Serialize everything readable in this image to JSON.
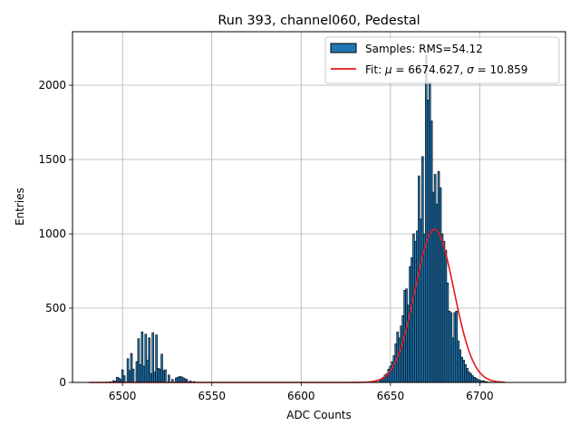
{
  "chart_data": {
    "type": "bar",
    "title": "Run 393, channel060, Pedestal",
    "xlabel": "ADC Counts",
    "ylabel": "Entries",
    "xlim": [
      6472,
      6748
    ],
    "ylim": [
      0,
      2360
    ],
    "xticks": [
      6500,
      6550,
      6600,
      6650,
      6700
    ],
    "yticks": [
      0,
      500,
      1000,
      1500,
      2000
    ],
    "grid": true,
    "legend": {
      "placement": "top-right",
      "samples_label": "Samples: RMS=54.12",
      "fit_label_prefix": "Fit: ",
      "fit_mu_symbol": "μ",
      "fit_mu_value": " = 6674.627, ",
      "fit_sigma_symbol": "σ",
      "fit_sigma_value": " = 10.859"
    },
    "colors": {
      "bars": "#1f77b4",
      "bar_edge": "#000000",
      "fit": "#e31a1c",
      "grid": "#b0b0b0"
    },
    "bin_width": 1,
    "bars": [
      {
        "x": 6488,
        "y": 2
      },
      {
        "x": 6491,
        "y": 3
      },
      {
        "x": 6493,
        "y": 5
      },
      {
        "x": 6495,
        "y": 12
      },
      {
        "x": 6496,
        "y": 8
      },
      {
        "x": 6497,
        "y": 35
      },
      {
        "x": 6498,
        "y": 30
      },
      {
        "x": 6499,
        "y": 20
      },
      {
        "x": 6500,
        "y": 85
      },
      {
        "x": 6501,
        "y": 45
      },
      {
        "x": 6503,
        "y": 160
      },
      {
        "x": 6504,
        "y": 80
      },
      {
        "x": 6505,
        "y": 195
      },
      {
        "x": 6506,
        "y": 90
      },
      {
        "x": 6508,
        "y": 140
      },
      {
        "x": 6509,
        "y": 295
      },
      {
        "x": 6510,
        "y": 120
      },
      {
        "x": 6511,
        "y": 340
      },
      {
        "x": 6512,
        "y": 110
      },
      {
        "x": 6513,
        "y": 325
      },
      {
        "x": 6514,
        "y": 150
      },
      {
        "x": 6515,
        "y": 300
      },
      {
        "x": 6516,
        "y": 60
      },
      {
        "x": 6517,
        "y": 335
      },
      {
        "x": 6518,
        "y": 70
      },
      {
        "x": 6519,
        "y": 320
      },
      {
        "x": 6520,
        "y": 95
      },
      {
        "x": 6521,
        "y": 90
      },
      {
        "x": 6522,
        "y": 190
      },
      {
        "x": 6523,
        "y": 80
      },
      {
        "x": 6524,
        "y": 85
      },
      {
        "x": 6526,
        "y": 50
      },
      {
        "x": 6528,
        "y": 20
      },
      {
        "x": 6530,
        "y": 30
      },
      {
        "x": 6531,
        "y": 35
      },
      {
        "x": 6532,
        "y": 40
      },
      {
        "x": 6533,
        "y": 38
      },
      {
        "x": 6534,
        "y": 32
      },
      {
        "x": 6535,
        "y": 25
      },
      {
        "x": 6536,
        "y": 20
      },
      {
        "x": 6538,
        "y": 10
      },
      {
        "x": 6540,
        "y": 6
      },
      {
        "x": 6642,
        "y": 10
      },
      {
        "x": 6644,
        "y": 20
      },
      {
        "x": 6645,
        "y": 15
      },
      {
        "x": 6646,
        "y": 35
      },
      {
        "x": 6647,
        "y": 50
      },
      {
        "x": 6648,
        "y": 60
      },
      {
        "x": 6649,
        "y": 90
      },
      {
        "x": 6650,
        "y": 110
      },
      {
        "x": 6651,
        "y": 140
      },
      {
        "x": 6652,
        "y": 180
      },
      {
        "x": 6653,
        "y": 260
      },
      {
        "x": 6654,
        "y": 340
      },
      {
        "x": 6655,
        "y": 300
      },
      {
        "x": 6656,
        "y": 380
      },
      {
        "x": 6657,
        "y": 450
      },
      {
        "x": 6658,
        "y": 620
      },
      {
        "x": 6659,
        "y": 630
      },
      {
        "x": 6660,
        "y": 520
      },
      {
        "x": 6661,
        "y": 780
      },
      {
        "x": 6662,
        "y": 840
      },
      {
        "x": 6663,
        "y": 1000
      },
      {
        "x": 6664,
        "y": 950
      },
      {
        "x": 6665,
        "y": 1020
      },
      {
        "x": 6666,
        "y": 1390
      },
      {
        "x": 6667,
        "y": 1100
      },
      {
        "x": 6668,
        "y": 1520
      },
      {
        "x": 6669,
        "y": 1000
      },
      {
        "x": 6670,
        "y": 2200
      },
      {
        "x": 6671,
        "y": 1900
      },
      {
        "x": 6672,
        "y": 2020
      },
      {
        "x": 6673,
        "y": 1760
      },
      {
        "x": 6674,
        "y": 1280
      },
      {
        "x": 6675,
        "y": 1400
      },
      {
        "x": 6676,
        "y": 1200
      },
      {
        "x": 6677,
        "y": 1420
      },
      {
        "x": 6678,
        "y": 1310
      },
      {
        "x": 6679,
        "y": 1000
      },
      {
        "x": 6680,
        "y": 950
      },
      {
        "x": 6681,
        "y": 890
      },
      {
        "x": 6682,
        "y": 670
      },
      {
        "x": 6683,
        "y": 480
      },
      {
        "x": 6684,
        "y": 470
      },
      {
        "x": 6685,
        "y": 300
      },
      {
        "x": 6686,
        "y": 470
      },
      {
        "x": 6687,
        "y": 480
      },
      {
        "x": 6688,
        "y": 280
      },
      {
        "x": 6689,
        "y": 220
      },
      {
        "x": 6690,
        "y": 170
      },
      {
        "x": 6691,
        "y": 150
      },
      {
        "x": 6692,
        "y": 120
      },
      {
        "x": 6693,
        "y": 95
      },
      {
        "x": 6694,
        "y": 70
      },
      {
        "x": 6695,
        "y": 60
      },
      {
        "x": 6696,
        "y": 45
      },
      {
        "x": 6697,
        "y": 35
      },
      {
        "x": 6698,
        "y": 28
      },
      {
        "x": 6699,
        "y": 20
      },
      {
        "x": 6700,
        "y": 15
      },
      {
        "x": 6701,
        "y": 10
      },
      {
        "x": 6702,
        "y": 12
      },
      {
        "x": 6703,
        "y": 6
      },
      {
        "x": 6704,
        "y": 5
      },
      {
        "x": 6706,
        "y": 3
      },
      {
        "x": 6708,
        "y": 2
      }
    ],
    "fit": {
      "type": "gaussian",
      "mu": 6674.627,
      "sigma": 10.859,
      "amplitude": 1030,
      "x_range": [
        6481,
        6714
      ]
    }
  }
}
